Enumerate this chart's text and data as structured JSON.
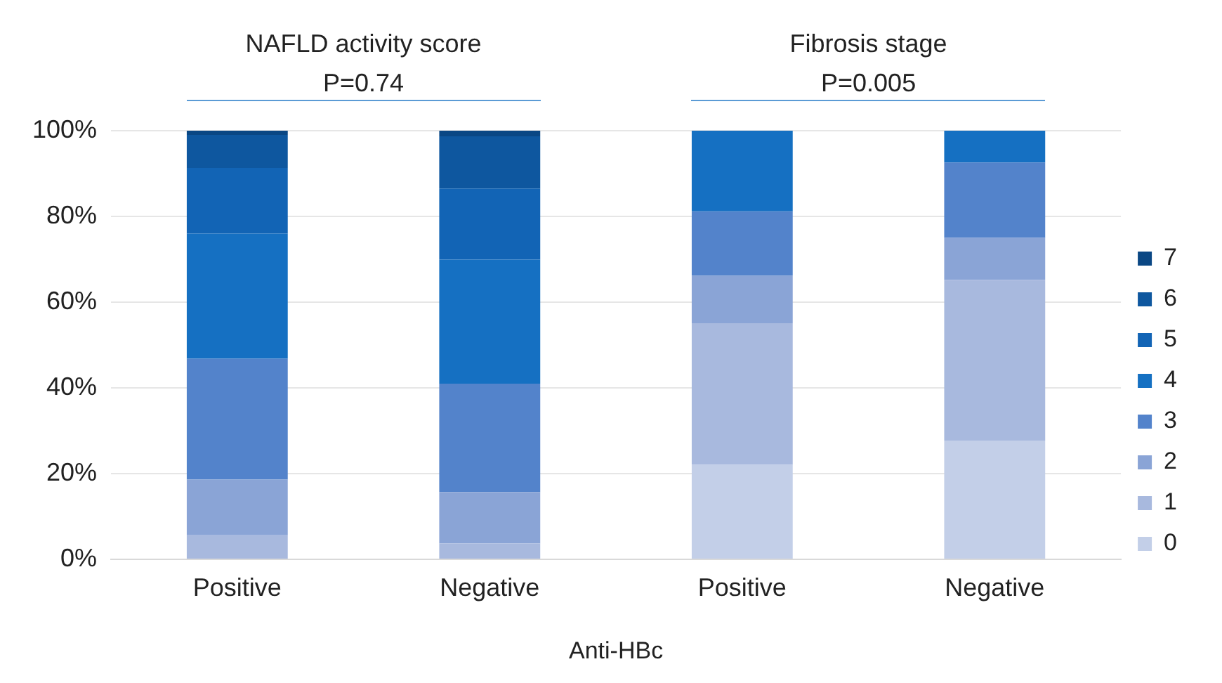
{
  "chart_data": {
    "type": "bar",
    "stacked": true,
    "xlabel": "Anti-HBc",
    "categories": [
      "Positive",
      "Negative",
      "Positive",
      "Negative"
    ],
    "annotations": [
      "NAFLD activity score",
      "P=0.74",
      "Fibrosis stage",
      "P=0.005"
    ],
    "series": [
      {
        "name": "0",
        "color": "#c3cfe8",
        "values": [
          null,
          null,
          22.1,
          27.7
        ]
      },
      {
        "name": "1",
        "color": "#a8b9de",
        "values": [
          5.6,
          3.7,
          33.0,
          37.5
        ]
      },
      {
        "name": "2",
        "color": "#8aa4d6",
        "values": [
          13.0,
          12.0,
          11.1,
          9.8
        ]
      },
      {
        "name": "3",
        "color": "#5383cb",
        "values": [
          28.2,
          25.3,
          15.0,
          17.6
        ]
      },
      {
        "name": "4",
        "color": "#1570c2",
        "values": [
          29.2,
          28.9,
          18.8,
          7.4
        ]
      },
      {
        "name": "5",
        "color": "#1264b5",
        "values": [
          15.3,
          16.6,
          null,
          null
        ]
      },
      {
        "name": "6",
        "color": "#0e579f",
        "values": [
          7.7,
          12.2,
          null,
          null
        ]
      },
      {
        "name": "7",
        "color": "#0a4784",
        "values": [
          1.0,
          1.3,
          null,
          null
        ]
      }
    ],
    "ylim": [
      0,
      100
    ],
    "yticks": [
      {
        "value": 0,
        "label": "0%"
      },
      {
        "value": 20,
        "label": "20%"
      },
      {
        "value": 40,
        "label": "40%"
      },
      {
        "value": 60,
        "label": "60%"
      },
      {
        "value": 80,
        "label": "80%"
      },
      {
        "value": 100,
        "label": "100%"
      }
    ],
    "grid": "y",
    "legend": "right"
  }
}
